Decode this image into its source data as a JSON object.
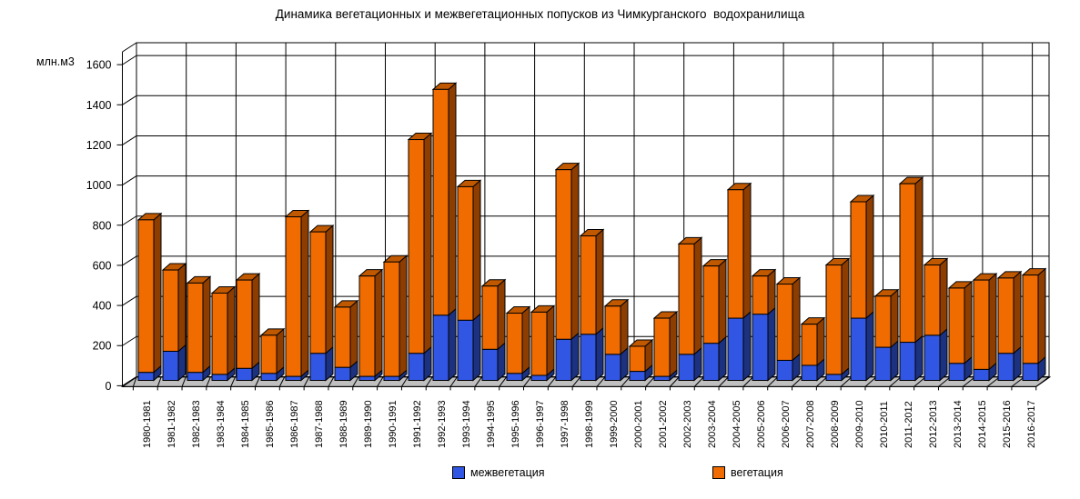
{
  "title": "Динамика вегетационных и межвегетационных попусков из Чимкурганского  водохранилища",
  "chart_data": {
    "type": "bar",
    "stacked": true,
    "title": "Динамика вегетационных и межвегетационных попусков из Чимкурганского  водохранилища",
    "ylabel": "млн.м3",
    "xlabel": "",
    "ylim": [
      0,
      1600
    ],
    "ytick_step": 200,
    "y_tick_labels": [
      "0",
      "200",
      "400",
      "600",
      "800",
      "1000",
      "1200",
      "1400",
      "1600"
    ],
    "grid": true,
    "legend_position": "bottom",
    "effect": "3d-columns",
    "categories": [
      "1980-1981",
      "1981-1982",
      "1982-1983",
      "1983-1984",
      "1984-1985",
      "1985-1986",
      "1986-1987",
      "1987-1988",
      "1988-1989",
      "1989-1990",
      "1990-1991",
      "1991-1992",
      "1992-1993",
      "1993-1994",
      "1994-1995",
      "1995-1996",
      "1996-1997",
      "1997-1998",
      "1998-1999",
      "1999-2000",
      "2000-2001",
      "2001-2002",
      "2002-2003",
      "2003-2004",
      "2004-2005",
      "2005-2006",
      "2006-2007",
      "2007-2008",
      "2008-2009",
      "2009-2010",
      "2010-2011",
      "2011-2012",
      "2012-2013",
      "2013-2014",
      "2014-2015",
      "2015-2016",
      "2016-2017"
    ],
    "series": [
      {
        "name": "межвегетация",
        "color": "#3156e3",
        "side_color": "#1c3280",
        "values": [
          40,
          145,
          40,
          30,
          60,
          35,
          20,
          135,
          65,
          20,
          20,
          135,
          325,
          300,
          155,
          35,
          25,
          205,
          230,
          130,
          45,
          20,
          130,
          185,
          310,
          330,
          100,
          75,
          30,
          310,
          165,
          190,
          225,
          85,
          55,
          135,
          85
        ]
      },
      {
        "name": "вегетация",
        "color": "#f06b00",
        "side_color": "#8e3d00",
        "top_color": "#c05800",
        "values": [
          760,
          405,
          445,
          405,
          440,
          190,
          795,
          605,
          300,
          500,
          570,
          1065,
          1125,
          665,
          315,
          300,
          315,
          845,
          490,
          240,
          125,
          290,
          550,
          385,
          640,
          190,
          380,
          205,
          545,
          580,
          255,
          790,
          350,
          375,
          445,
          375,
          440
        ]
      }
    ],
    "colors": {
      "floor": "#c0c0c0",
      "wall": "#ffffff",
      "gridline": "#000000",
      "text": "#000000"
    }
  }
}
